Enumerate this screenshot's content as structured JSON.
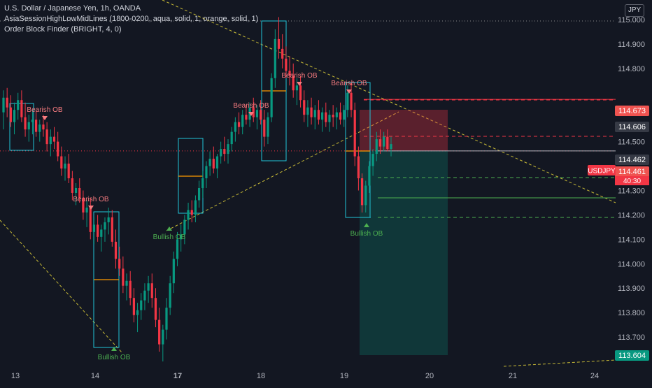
{
  "legend": {
    "line1": "U.S. Dollar / Japanese Yen, 1h, OANDA",
    "line2": "AsiaSessionHighLowMidLines (1800-0200, aqua, solid, 1, orange, solid, 1)",
    "line3": "Order Block Finder (BRIGHT, 4, 0)"
  },
  "currency_button": "JPY",
  "chart_data": {
    "type": "candlestick",
    "title": "U.S. Dollar / Japanese Yen, 1h, OANDA",
    "x_ticks": [
      "13",
      "14",
      "17",
      "18",
      "19",
      "20",
      "21",
      "24"
    ],
    "y_ticks": [
      "115.000",
      "114.900",
      "114.800",
      "114.500",
      "114.300",
      "114.200",
      "114.100",
      "114.000",
      "113.900",
      "113.800",
      "113.700"
    ],
    "ylim": [
      113.58,
      115.08
    ],
    "price_badges": [
      {
        "label": "114.673",
        "value": 114.673,
        "color": "#ef5350"
      },
      {
        "label": "114.606",
        "value": 114.606,
        "color": "#363a45"
      },
      {
        "label": "114.462",
        "value": 114.462,
        "color": "#363a45"
      },
      {
        "label": "114.461",
        "value": 114.461,
        "color": "#ef5350"
      },
      {
        "label": "113.604",
        "value": 113.604,
        "color": "#089981"
      }
    ],
    "symbol_badge": "USDJPY",
    "countdown": "40:30",
    "order_blocks": [
      {
        "label": "Bearish OB",
        "type": "bearish"
      },
      {
        "label": "Bearish OB",
        "type": "bearish"
      },
      {
        "label": "Bearish OB",
        "type": "bearish"
      },
      {
        "label": "Bearish OB",
        "type": "bearish"
      },
      {
        "label": "Bearish OB",
        "type": "bearish"
      },
      {
        "label": "Bullish OB",
        "type": "bullish"
      },
      {
        "label": "Bullish OB",
        "type": "bullish"
      },
      {
        "label": "Bullish OB",
        "type": "bullish"
      }
    ],
    "candles": [
      [
        114.62,
        114.71,
        114.55,
        114.68
      ],
      [
        114.68,
        114.72,
        114.6,
        114.64
      ],
      [
        114.64,
        114.69,
        114.56,
        114.58
      ],
      [
        114.58,
        114.66,
        114.53,
        114.63
      ],
      [
        114.63,
        114.7,
        114.59,
        114.67
      ],
      [
        114.67,
        114.71,
        114.58,
        114.6
      ],
      [
        114.6,
        114.66,
        114.52,
        114.55
      ],
      [
        114.55,
        114.61,
        114.5,
        114.58
      ],
      [
        114.58,
        114.63,
        114.53,
        114.59
      ],
      [
        114.59,
        114.63,
        114.52,
        114.54
      ],
      [
        114.54,
        114.59,
        114.5,
        114.57
      ],
      [
        114.57,
        114.61,
        114.52,
        114.55
      ],
      [
        114.55,
        114.58,
        114.46,
        114.49
      ],
      [
        114.49,
        114.55,
        114.44,
        114.52
      ],
      [
        114.52,
        114.56,
        114.47,
        114.5
      ],
      [
        114.5,
        114.54,
        114.42,
        114.44
      ],
      [
        114.44,
        114.48,
        114.36,
        114.39
      ],
      [
        114.39,
        114.44,
        114.34,
        114.41
      ],
      [
        114.41,
        114.45,
        114.33,
        114.35
      ],
      [
        114.35,
        114.38,
        114.26,
        114.29
      ],
      [
        114.29,
        114.33,
        114.24,
        114.31
      ],
      [
        114.31,
        114.35,
        114.25,
        114.27
      ],
      [
        114.27,
        114.3,
        114.18,
        114.21
      ],
      [
        114.21,
        114.26,
        114.15,
        114.23
      ],
      [
        114.23,
        114.27,
        114.1,
        114.13
      ],
      [
        114.13,
        114.19,
        114.08,
        114.16
      ],
      [
        114.16,
        114.2,
        114.09,
        114.11
      ],
      [
        114.11,
        114.16,
        114.05,
        114.14
      ],
      [
        114.14,
        114.19,
        114.09,
        114.17
      ],
      [
        114.17,
        114.23,
        114.12,
        114.19
      ],
      [
        114.19,
        114.22,
        114.07,
        114.09
      ],
      [
        114.09,
        114.14,
        113.98,
        114.02
      ],
      [
        114.02,
        114.07,
        113.95,
        113.98
      ],
      [
        113.98,
        114.03,
        113.88,
        113.91
      ],
      [
        113.91,
        113.96,
        113.85,
        113.93
      ],
      [
        113.93,
        113.97,
        113.83,
        113.86
      ],
      [
        113.86,
        113.9,
        113.76,
        113.79
      ],
      [
        113.79,
        113.84,
        113.72,
        113.81
      ],
      [
        113.81,
        113.88,
        113.77,
        113.85
      ],
      [
        113.85,
        113.92,
        113.81,
        113.89
      ],
      [
        113.89,
        113.95,
        113.84,
        113.92
      ],
      [
        113.92,
        113.96,
        113.82,
        113.86
      ],
      [
        113.86,
        113.9,
        113.74,
        113.77
      ],
      [
        113.77,
        113.82,
        113.64,
        113.67
      ],
      [
        113.67,
        113.75,
        113.6,
        113.73
      ],
      [
        113.73,
        113.86,
        113.69,
        113.82
      ],
      [
        113.82,
        113.95,
        113.79,
        113.92
      ],
      [
        113.92,
        114.05,
        113.88,
        114.02
      ],
      [
        114.02,
        114.13,
        113.99,
        114.1
      ],
      [
        114.1,
        114.16,
        114.05,
        114.12
      ],
      [
        114.12,
        114.2,
        114.08,
        114.18
      ],
      [
        114.18,
        114.25,
        114.14,
        114.22
      ],
      [
        114.22,
        114.26,
        114.17,
        114.2
      ],
      [
        114.2,
        114.28,
        114.17,
        114.26
      ],
      [
        114.26,
        114.34,
        114.23,
        114.31
      ],
      [
        114.31,
        114.38,
        114.27,
        114.35
      ],
      [
        114.35,
        114.42,
        114.31,
        114.4
      ],
      [
        114.4,
        114.46,
        114.36,
        114.43
      ],
      [
        114.43,
        114.48,
        114.37,
        114.39
      ],
      [
        114.39,
        114.45,
        114.35,
        114.44
      ],
      [
        114.44,
        114.5,
        114.41,
        114.47
      ],
      [
        114.47,
        114.52,
        114.42,
        114.45
      ],
      [
        114.45,
        114.51,
        114.41,
        114.49
      ],
      [
        114.49,
        114.56,
        114.46,
        114.54
      ],
      [
        114.54,
        114.6,
        114.5,
        114.58
      ],
      [
        114.58,
        114.62,
        114.53,
        114.56
      ],
      [
        114.56,
        114.63,
        114.53,
        114.61
      ],
      [
        114.61,
        114.65,
        114.57,
        114.59
      ],
      [
        114.59,
        114.66,
        114.56,
        114.64
      ],
      [
        114.64,
        114.68,
        114.58,
        114.6
      ],
      [
        114.6,
        114.65,
        114.55,
        114.63
      ],
      [
        114.63,
        114.67,
        114.57,
        114.59
      ],
      [
        114.59,
        114.63,
        114.48,
        114.52
      ],
      [
        114.52,
        114.62,
        114.49,
        114.6
      ],
      [
        114.6,
        114.78,
        114.58,
        114.76
      ],
      [
        114.76,
        114.96,
        114.72,
        114.92
      ],
      [
        114.92,
        115.01,
        114.84,
        114.88
      ],
      [
        114.88,
        114.94,
        114.8,
        114.84
      ],
      [
        114.84,
        114.89,
        114.76,
        114.79
      ],
      [
        114.79,
        114.85,
        114.73,
        114.77
      ],
      [
        114.77,
        114.82,
        114.68,
        114.71
      ],
      [
        114.71,
        114.76,
        114.65,
        114.73
      ],
      [
        114.73,
        114.77,
        114.64,
        114.67
      ],
      [
        114.67,
        114.71,
        114.58,
        114.61
      ],
      [
        114.61,
        114.67,
        114.56,
        114.64
      ],
      [
        114.64,
        114.68,
        114.57,
        114.6
      ],
      [
        114.6,
        114.65,
        114.55,
        114.63
      ],
      [
        114.63,
        114.67,
        114.57,
        114.59
      ],
      [
        114.59,
        114.64,
        114.54,
        114.62
      ],
      [
        114.62,
        114.66,
        114.56,
        114.58
      ],
      [
        114.58,
        114.63,
        114.54,
        114.61
      ],
      [
        114.61,
        114.65,
        114.56,
        114.6
      ],
      [
        114.6,
        114.64,
        114.55,
        114.62
      ],
      [
        114.62,
        114.66,
        114.57,
        114.59
      ],
      [
        114.59,
        114.65,
        114.56,
        114.63
      ],
      [
        114.63,
        114.73,
        114.6,
        114.7
      ],
      [
        114.7,
        114.74,
        114.6,
        114.63
      ],
      [
        114.63,
        114.66,
        114.4,
        114.44
      ],
      [
        114.44,
        114.48,
        114.3,
        114.35
      ],
      [
        114.35,
        114.37,
        114.21,
        114.24
      ],
      [
        114.24,
        114.34,
        114.21,
        114.32
      ],
      [
        114.32,
        114.42,
        114.29,
        114.4
      ],
      [
        114.4,
        114.47,
        114.36,
        114.45
      ],
      [
        114.45,
        114.54,
        114.42,
        114.51
      ],
      [
        114.51,
        114.55,
        114.45,
        114.48
      ],
      [
        114.48,
        114.54,
        114.46,
        114.52
      ],
      [
        114.52,
        114.55,
        114.46,
        114.47
      ],
      [
        114.47,
        114.52,
        114.44,
        114.49
      ]
    ]
  }
}
